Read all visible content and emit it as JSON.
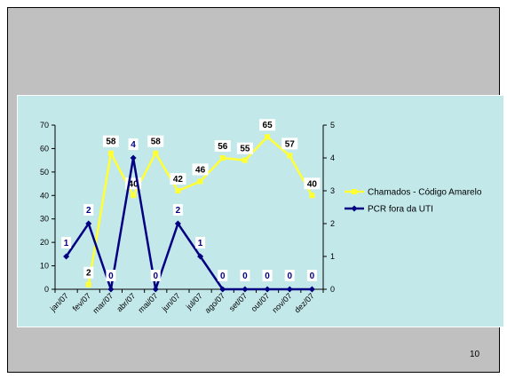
{
  "slide": {
    "page_number": "10"
  },
  "chart_data": {
    "type": "line",
    "title": "",
    "categories": [
      "jan/07",
      "fev/07",
      "mar/07",
      "abr/07",
      "mai/07",
      "jun/07",
      "jul/07",
      "ago/07",
      "set/07",
      "out/07",
      "nov/07",
      "dez/07"
    ],
    "y_left": {
      "range": [
        0,
        70
      ],
      "ticks": [
        0,
        10,
        20,
        30,
        40,
        50,
        60,
        70
      ]
    },
    "y_right": {
      "range": [
        0,
        5
      ],
      "ticks": [
        0,
        1,
        2,
        3,
        4,
        5
      ]
    },
    "grid": false,
    "legend_position": "right",
    "series": [
      {
        "name": "Chamados - Código Amarelo",
        "axis": "left",
        "color": "#ffff33",
        "label_color": "#000000",
        "marker": "square",
        "values": [
          null,
          2,
          58,
          40,
          58,
          42,
          46,
          56,
          55,
          65,
          57,
          40
        ]
      },
      {
        "name": "PCR fora da UTI",
        "axis": "right",
        "color": "#000080",
        "label_color": "#000080",
        "marker": "diamond",
        "values": [
          1,
          2,
          0,
          4,
          0,
          2,
          1,
          0,
          0,
          0,
          0,
          0
        ]
      }
    ]
  }
}
